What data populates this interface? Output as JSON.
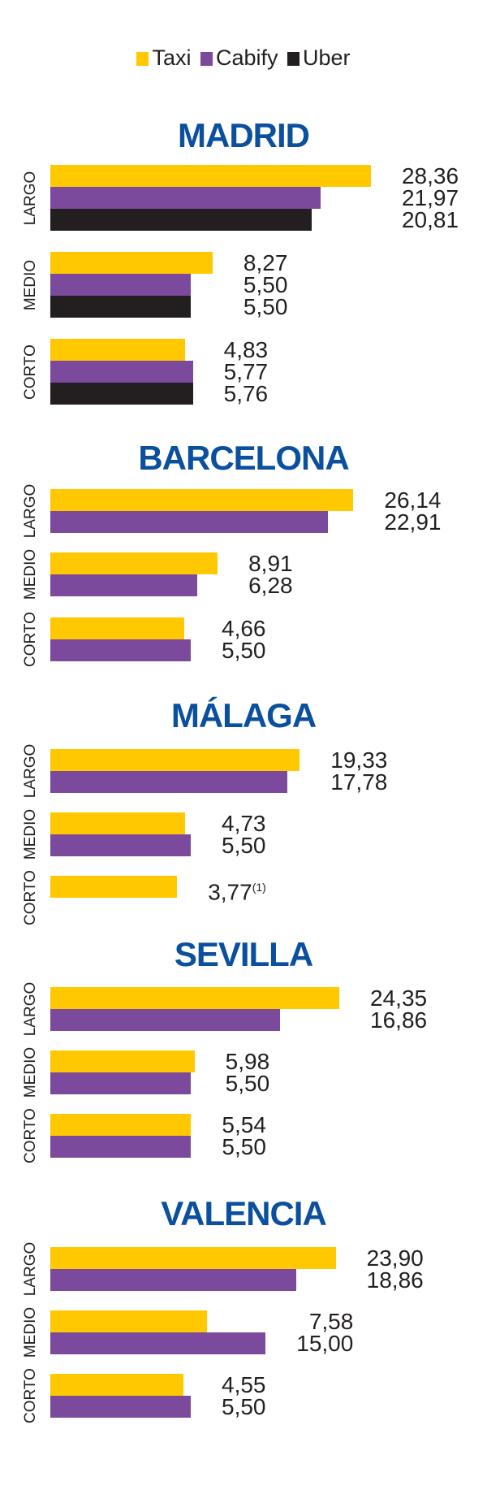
{
  "colors": {
    "Taxi": "#ffc800",
    "Cabify": "#7b4a9c",
    "Uber": "#231f20",
    "title": "#0b4f9f"
  },
  "chart_data": {
    "type": "bar",
    "orientation": "horizontal",
    "legend": [
      "Taxi",
      "Cabify",
      "Uber"
    ],
    "legend_position": "top-center",
    "categories": [
      "LARGO",
      "MEDIO",
      "CORTO"
    ],
    "panels": [
      {
        "title": "MADRID",
        "groups": [
          {
            "category": "LARGO",
            "values": {
              "Taxi": 28.36,
              "Cabify": 21.97,
              "Uber": 20.81
            },
            "labels": {
              "Taxi": "28,36",
              "Cabify": "21,97",
              "Uber": "20,81"
            }
          },
          {
            "category": "MEDIO",
            "values": {
              "Taxi": 8.27,
              "Cabify": 5.5,
              "Uber": 5.5
            },
            "labels": {
              "Taxi": "8,27",
              "Cabify": "5,50",
              "Uber": "5,50"
            }
          },
          {
            "category": "CORTO",
            "values": {
              "Taxi": 4.83,
              "Cabify": 5.77,
              "Uber": 5.76
            },
            "labels": {
              "Taxi": "4,83",
              "Cabify": "5,77",
              "Uber": "5,76"
            }
          }
        ]
      },
      {
        "title": "BARCELONA",
        "groups": [
          {
            "category": "LARGO",
            "values": {
              "Taxi": 26.14,
              "Cabify": 22.91
            },
            "labels": {
              "Taxi": "26,14",
              "Cabify": "22,91"
            }
          },
          {
            "category": "MEDIO",
            "values": {
              "Taxi": 8.91,
              "Cabify": 6.28
            },
            "labels": {
              "Taxi": "8,91",
              "Cabify": "6,28"
            }
          },
          {
            "category": "CORTO",
            "values": {
              "Taxi": 4.66,
              "Cabify": 5.5
            },
            "labels": {
              "Taxi": "4,66",
              "Cabify": "5,50"
            }
          }
        ]
      },
      {
        "title": "MÁLAGA",
        "groups": [
          {
            "category": "LARGO",
            "values": {
              "Taxi": 19.33,
              "Cabify": 17.78
            },
            "labels": {
              "Taxi": "19,33",
              "Cabify": "17,78"
            }
          },
          {
            "category": "MEDIO",
            "values": {
              "Taxi": 4.73,
              "Cabify": 5.5
            },
            "labels": {
              "Taxi": "4,73",
              "Cabify": "5,50"
            }
          },
          {
            "category": "CORTO",
            "values": {
              "Taxi": 3.77
            },
            "labels": {
              "Taxi": "3,77"
            },
            "notes": {
              "Taxi": "(1)"
            }
          }
        ]
      },
      {
        "title": "SEVILLA",
        "groups": [
          {
            "category": "LARGO",
            "values": {
              "Taxi": 24.35,
              "Cabify": 16.86
            },
            "labels": {
              "Taxi": "24,35",
              "Cabify": "16,86"
            }
          },
          {
            "category": "MEDIO",
            "values": {
              "Taxi": 5.98,
              "Cabify": 5.5
            },
            "labels": {
              "Taxi": "5,98",
              "Cabify": "5,50"
            }
          },
          {
            "category": "CORTO",
            "values": {
              "Taxi": 5.54,
              "Cabify": 5.5
            },
            "labels": {
              "Taxi": "5,54",
              "Cabify": "5,50"
            }
          }
        ]
      },
      {
        "title": "VALENCIA",
        "groups": [
          {
            "category": "LARGO",
            "values": {
              "Taxi": 23.9,
              "Cabify": 18.86
            },
            "labels": {
              "Taxi": "23,90",
              "Cabify": "18,86"
            }
          },
          {
            "category": "MEDIO",
            "values": {
              "Taxi": 7.58,
              "Cabify": 15.0
            },
            "labels": {
              "Taxi": "7,58",
              "Cabify": "15,00"
            }
          },
          {
            "category": "CORTO",
            "values": {
              "Taxi": 4.55,
              "Cabify": 5.5
            },
            "labels": {
              "Taxi": "4,55",
              "Cabify": "5,50"
            }
          }
        ]
      }
    ]
  }
}
